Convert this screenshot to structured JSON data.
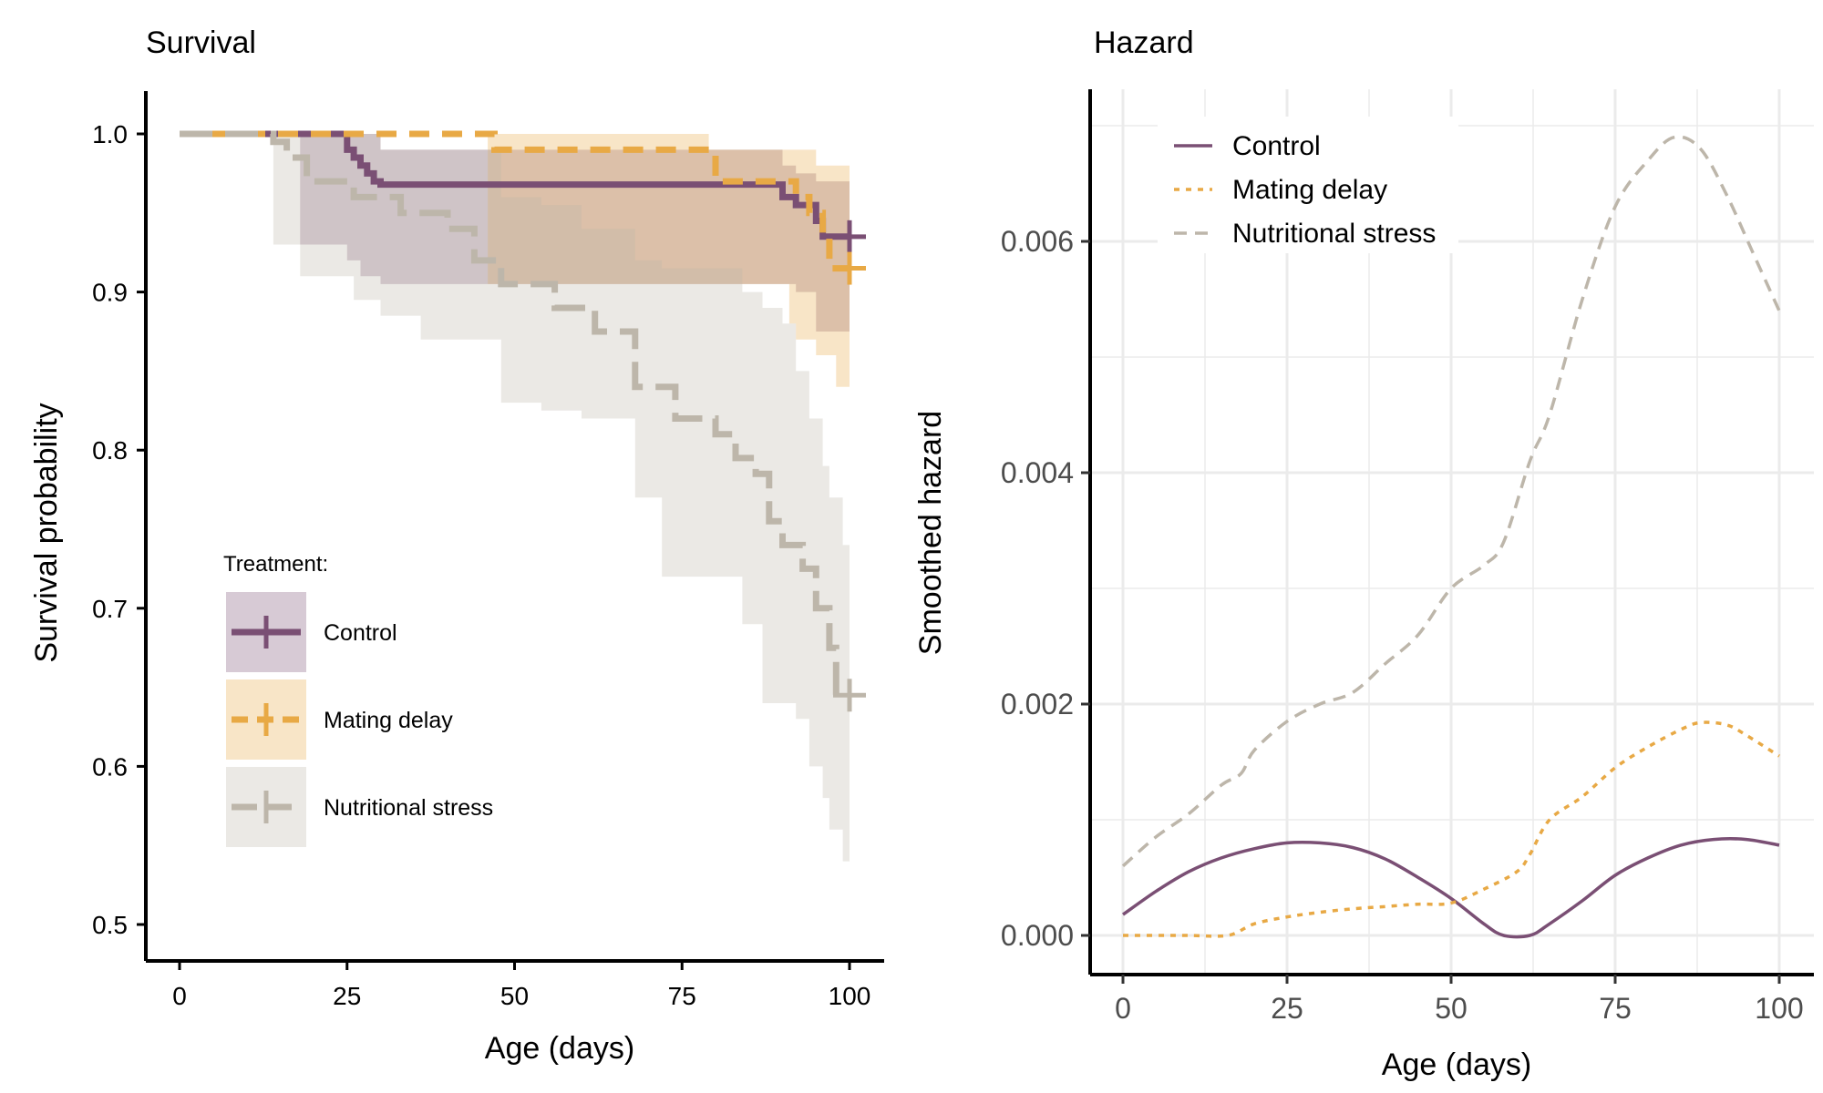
{
  "chart_data": [
    {
      "type": "line",
      "subtype": "kaplan-meier-step",
      "title": "Survival",
      "xlabel": "Age (days)",
      "ylabel": "Survival probability",
      "xlim": [
        0,
        100
      ],
      "ylim": [
        0.5,
        1.0
      ],
      "xticks": [
        "0",
        "25",
        "50",
        "75",
        "100"
      ],
      "yticks": [
        "0.5",
        "0.6",
        "0.7",
        "0.8",
        "0.9",
        "1.0"
      ],
      "grid": false,
      "legend": {
        "title": "Treatment:",
        "placement": "left-middle"
      },
      "series": [
        {
          "name": "Control",
          "color": "#7a4f74",
          "dash": "solid",
          "x": [
            0,
            18,
            25,
            26,
            27,
            28,
            29,
            30,
            87,
            90,
            92,
            95,
            96,
            100
          ],
          "y": [
            1.0,
            1.0,
            0.99,
            0.985,
            0.98,
            0.975,
            0.97,
            0.968,
            0.968,
            0.96,
            0.955,
            0.945,
            0.935,
            0.935
          ],
          "ci_x": [
            14,
            18,
            25,
            27,
            30,
            46,
            79,
            89,
            90,
            92,
            95,
            100
          ],
          "ci_lower": [
            1.0,
            0.93,
            0.92,
            0.91,
            0.905,
            0.905,
            0.905,
            0.905,
            0.905,
            0.9,
            0.875,
            0.865
          ],
          "ci_upper": [
            1.0,
            1.0,
            1.0,
            1.0,
            0.99,
            0.99,
            0.99,
            0.99,
            0.98,
            0.975,
            0.97,
            0.97
          ],
          "censored": [
            {
              "x": 100,
              "y": 0.935
            }
          ]
        },
        {
          "name": "Mating delay",
          "color": "#e8a945",
          "dash": "dashed",
          "x": [
            0,
            46,
            47,
            79,
            80,
            90,
            92,
            94,
            96,
            97,
            100
          ],
          "y": [
            1.0,
            1.0,
            0.99,
            0.99,
            0.97,
            0.97,
            0.96,
            0.95,
            0.935,
            0.915,
            0.915
          ],
          "ci_x": [
            6,
            46,
            79,
            89,
            91,
            92,
            95,
            98,
            100
          ],
          "ci_lower": [
            1.0,
            0.905,
            0.905,
            0.905,
            0.88,
            0.87,
            0.86,
            0.84,
            0.84
          ],
          "ci_upper": [
            1.0,
            1.0,
            0.99,
            0.99,
            0.99,
            0.99,
            0.98,
            0.98,
            0.98
          ],
          "censored": [
            {
              "x": 100,
              "y": 0.915
            }
          ]
        },
        {
          "name": "Nutritional stress",
          "color": "#bdb6aa",
          "dash": "longdash",
          "x": [
            0,
            14,
            16,
            19,
            26,
            33,
            40,
            44,
            48,
            56,
            62,
            68,
            74,
            80,
            83,
            86,
            88,
            90,
            93,
            95,
            97,
            98,
            100
          ],
          "y": [
            1.0,
            0.995,
            0.985,
            0.97,
            0.96,
            0.95,
            0.94,
            0.92,
            0.905,
            0.89,
            0.875,
            0.84,
            0.82,
            0.81,
            0.795,
            0.785,
            0.755,
            0.74,
            0.725,
            0.7,
            0.675,
            0.645,
            0.645
          ],
          "ci_x": [
            14,
            18,
            26,
            30,
            36,
            48,
            54,
            60,
            68,
            72,
            80,
            84,
            87,
            90,
            92,
            94,
            96,
            97,
            99,
            100
          ],
          "ci_lower": [
            0.93,
            0.91,
            0.895,
            0.885,
            0.87,
            0.83,
            0.825,
            0.82,
            0.77,
            0.72,
            0.72,
            0.69,
            0.64,
            0.64,
            0.63,
            0.6,
            0.58,
            0.56,
            0.54,
            0.54
          ],
          "ci_upper": [
            1.0,
            1.0,
            1.0,
            0.99,
            0.99,
            0.96,
            0.955,
            0.94,
            0.92,
            0.915,
            0.915,
            0.9,
            0.89,
            0.88,
            0.85,
            0.82,
            0.79,
            0.77,
            0.74,
            0.72
          ],
          "censored": [
            {
              "x": 100,
              "y": 0.645
            }
          ]
        }
      ]
    },
    {
      "type": "line",
      "title": "Hazard",
      "xlabel": "Age (days)",
      "ylabel": "Smoothed hazard",
      "xlim": [
        0,
        100
      ],
      "ylim": [
        0,
        0.007
      ],
      "xticks": [
        "0",
        "25",
        "50",
        "75",
        "100"
      ],
      "yticks": [
        "0.000",
        "0.002",
        "0.004",
        "0.006"
      ],
      "grid": true,
      "legend": {
        "placement": "top-left"
      },
      "series": [
        {
          "name": "Control",
          "color": "#7a4f74",
          "dash": "solid",
          "x": [
            0,
            5,
            10,
            15,
            20,
            25,
            30,
            35,
            40,
            45,
            50,
            55,
            58,
            62,
            65,
            70,
            75,
            80,
            85,
            90,
            95,
            100
          ],
          "y": [
            0.00018,
            0.00038,
            0.00055,
            0.00067,
            0.00075,
            0.0008,
            0.0008,
            0.00076,
            0.00066,
            0.0005,
            0.00032,
            0.0001,
            0.0,
            0.0,
            0.0001,
            0.0003,
            0.00052,
            0.00067,
            0.00078,
            0.00083,
            0.00083,
            0.00078
          ],
          "x_formatted": []
        },
        {
          "name": "Mating delay",
          "color": "#e8a945",
          "dash": "dotted",
          "x": [
            0,
            5,
            10,
            16,
            20,
            25,
            30,
            35,
            40,
            45,
            50,
            55,
            60,
            62,
            65,
            70,
            75,
            80,
            85,
            88,
            92,
            95,
            100
          ],
          "y": [
            0.0,
            0.0,
            0.0,
            0.0,
            0.0001,
            0.00016,
            0.0002,
            0.00023,
            0.00025,
            0.00027,
            0.00028,
            0.0004,
            0.00055,
            0.0007,
            0.001,
            0.0012,
            0.00145,
            0.00163,
            0.00178,
            0.00184,
            0.00182,
            0.00173,
            0.00155
          ]
        },
        {
          "name": "Nutritional stress",
          "color": "#bdb6aa",
          "dash": "dashed",
          "x": [
            0,
            5,
            10,
            15,
            18,
            20,
            25,
            30,
            35,
            40,
            45,
            50,
            55,
            58,
            62,
            65,
            70,
            75,
            80,
            84,
            88,
            92,
            96,
            100
          ],
          "y": [
            0.0006,
            0.00085,
            0.00105,
            0.0013,
            0.0014,
            0.0016,
            0.00185,
            0.002,
            0.0021,
            0.00235,
            0.0026,
            0.003,
            0.0032,
            0.0034,
            0.0041,
            0.0045,
            0.0055,
            0.0063,
            0.0067,
            0.0069,
            0.0068,
            0.0064,
            0.0059,
            0.0054
          ]
        }
      ]
    }
  ]
}
